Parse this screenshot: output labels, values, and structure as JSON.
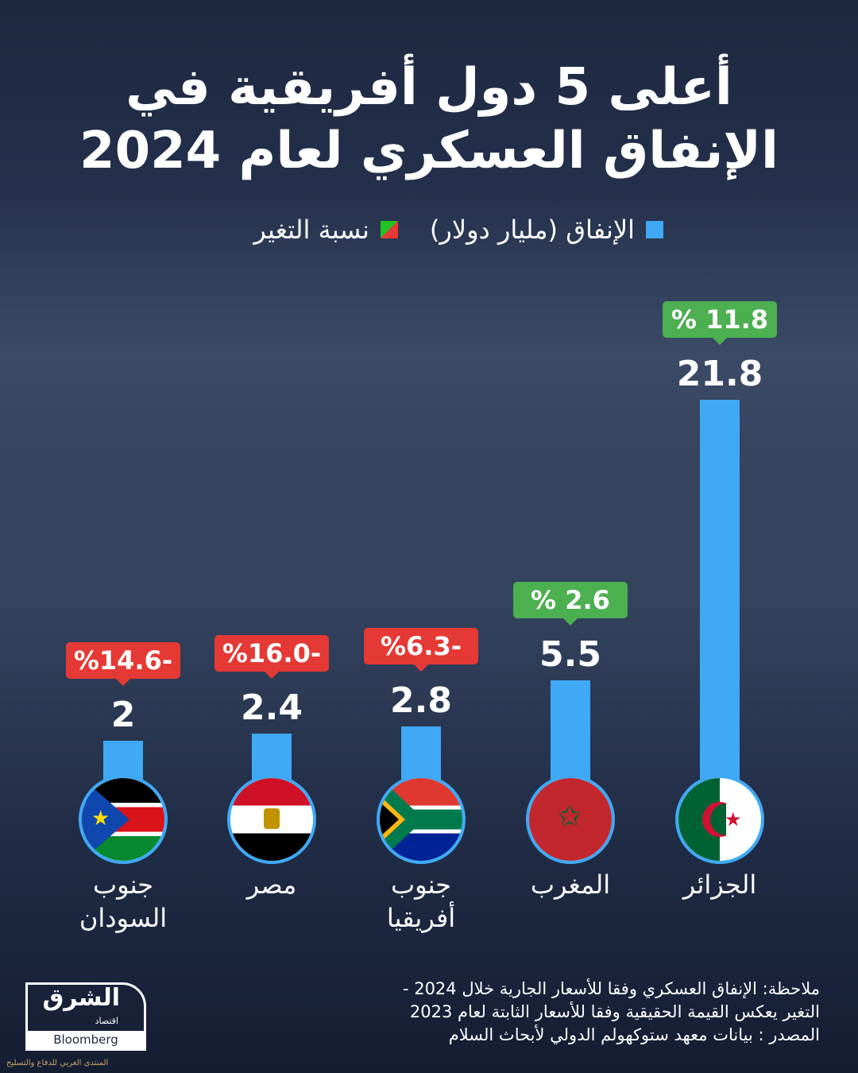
{
  "title": [
    "أعلى 5 دول أفريقية في",
    "الإنفاق العسكري لعام 2024"
  ],
  "legend": {
    "spending": "الإنفاق (مليار دولار)",
    "change": "نسبة التغير"
  },
  "colors": {
    "bar": "#3fa9f5",
    "positive": "#4caf50",
    "negative": "#e53935"
  },
  "chart_data": {
    "type": "bar",
    "categories": [
      "الجزائر",
      "المغرب",
      "جنوب أفريقيا",
      "مصر",
      "جنوب السودان"
    ],
    "series": [
      {
        "name": "الإنفاق (مليار دولار)",
        "values": [
          21.8,
          5.5,
          2.8,
          2.4,
          2
        ]
      },
      {
        "name": "نسبة التغير",
        "values": [
          11.8,
          2.6,
          -6.3,
          -16.0,
          -14.6
        ]
      }
    ],
    "value_labels": [
      "21.8",
      "5.5",
      "2.8",
      "2.4",
      "2"
    ],
    "change_labels": [
      "% 11.8",
      "% 2.6",
      "%6.3-",
      "%16.0-",
      "%14.6-"
    ],
    "name_lines": [
      [
        "الجزائر"
      ],
      [
        "المغرب"
      ],
      [
        "جنوب",
        "أفريقيا"
      ],
      [
        "مصر"
      ],
      [
        "جنوب",
        "السودان"
      ]
    ]
  },
  "notes": [
    "ملاحظة: الإنفاق العسكري وفقا للأسعار الجارية خلال 2024 -",
    "التغير يعكس القيمة الحقيقية وفقا للأسعار الثابتة لعام 2023",
    "المصدر : بيانات معهد ستوكهولم الدولي لأبحاث السلام"
  ],
  "logo": {
    "arabic": "الشرق",
    "sub": "اقتصاد",
    "bloomberg": "Bloomberg"
  },
  "watermark": "المنتدى العربي للدفاع والتسليح"
}
